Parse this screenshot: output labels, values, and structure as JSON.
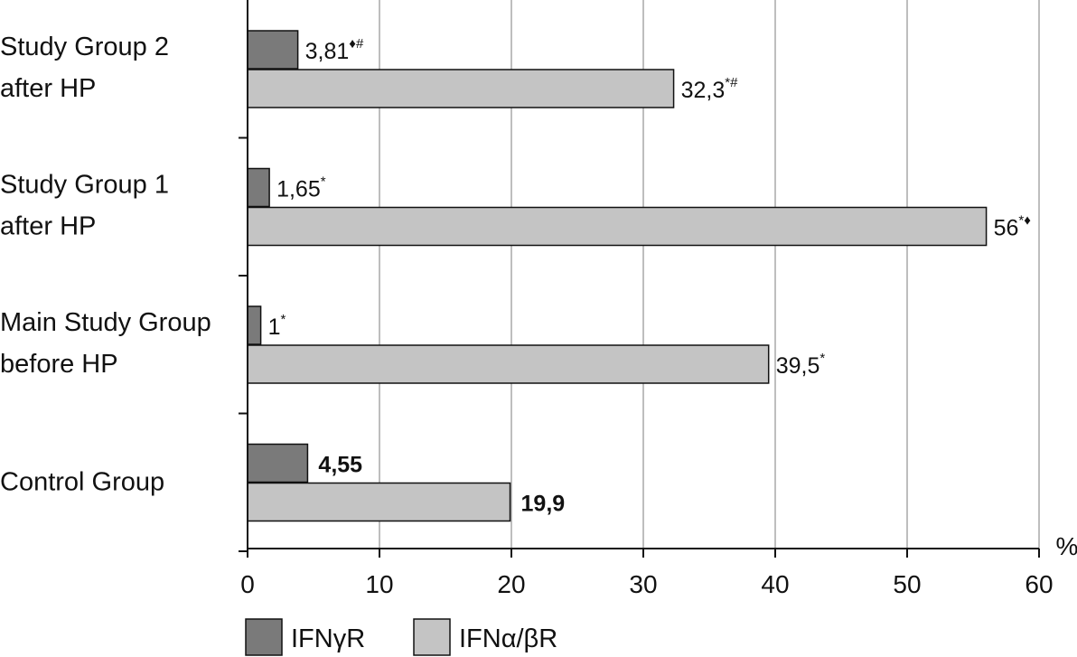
{
  "chart_data": {
    "type": "bar",
    "orientation": "horizontal",
    "categories": [
      [
        "Study Group 2",
        "after HP"
      ],
      [
        "Study Group 1",
        "after HP"
      ],
      [
        "Main Study Group",
        "before HP"
      ],
      [
        "Control Group"
      ]
    ],
    "series": [
      {
        "name": "IFNγR",
        "color": "#7a7a7a",
        "values": [
          3.81,
          1.65,
          1,
          4.55
        ],
        "labels": [
          "3,81",
          "1,65",
          "1",
          "4,55"
        ],
        "marks": [
          "♦#",
          "*",
          "*",
          ""
        ],
        "bold": [
          false,
          false,
          false,
          true
        ]
      },
      {
        "name": "IFNα/βR",
        "color": "#c4c4c4",
        "values": [
          32.3,
          56,
          39.5,
          19.9
        ],
        "labels": [
          "32,3",
          "56",
          "39,5",
          "19,9"
        ],
        "marks": [
          "*#",
          "*♦",
          "*",
          ""
        ],
        "bold": [
          false,
          false,
          false,
          true
        ]
      }
    ],
    "xlim": [
      0,
      60
    ],
    "xticks": [
      0,
      10,
      20,
      30,
      40,
      50,
      60
    ],
    "xunit": "%",
    "grid": "vertical",
    "legend_position": "bottom-left"
  }
}
